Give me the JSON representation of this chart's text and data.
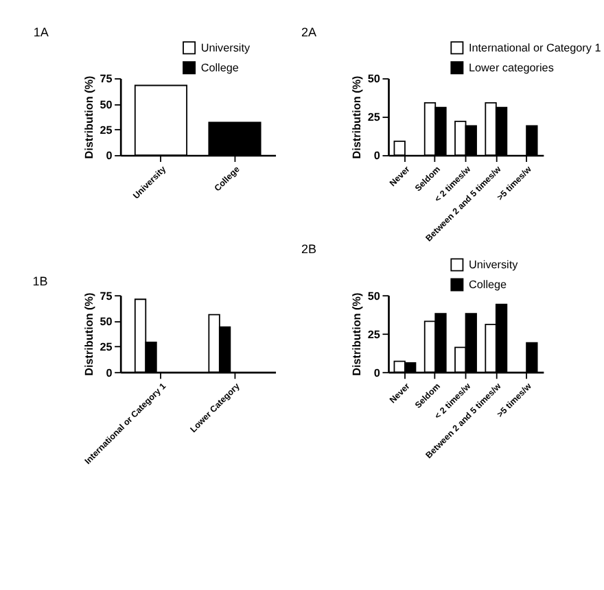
{
  "chart_data": [
    {
      "type": "bar",
      "title": "1A",
      "ylabel": "Distribution (%)",
      "categories": [
        "University",
        "College"
      ],
      "series": [
        {
          "name": "University",
          "color": "#ffffff",
          "values": [
            68,
            null
          ]
        },
        {
          "name": "College",
          "color": "#000000",
          "values": [
            null,
            32
          ]
        }
      ],
      "ylim": [
        0,
        75
      ],
      "yticks": [
        0,
        25,
        50,
        75
      ],
      "grid": false,
      "legend": "top right"
    },
    {
      "type": "bar",
      "title": "2A",
      "ylabel": "Distribution (%)",
      "categories": [
        "Never",
        "Seldom",
        "< 2 times/w",
        "Between 2 and 5 times/w",
        ">5 times/w"
      ],
      "series": [
        {
          "name": "International or Category 1",
          "color": "#ffffff",
          "values": [
            9,
            34,
            22,
            34,
            null
          ]
        },
        {
          "name": "Lower categories",
          "color": "#000000",
          "values": [
            null,
            31,
            19,
            31,
            19
          ]
        }
      ],
      "ylim": [
        0,
        50
      ],
      "yticks": [
        0,
        25,
        50
      ],
      "grid": false,
      "legend": "top right"
    },
    {
      "type": "bar",
      "title": "1B",
      "ylabel": "Distribution (%)",
      "categories": [
        "International or Category 1",
        "Lower Category"
      ],
      "series": [
        {
          "color": "#ffffff",
          "values": [
            71,
            56
          ]
        },
        {
          "color": "#000000",
          "values": [
            29,
            44
          ]
        }
      ],
      "ylim": [
        0,
        75
      ],
      "yticks": [
        0,
        25,
        50,
        75
      ],
      "grid": false,
      "legend": false
    },
    {
      "type": "bar",
      "title": "2B",
      "ylabel": "Distribution (%)",
      "categories": [
        "Never",
        "Seldom",
        "< 2 times/w",
        "Between 2 and 5 times/w",
        ">5 times/w"
      ],
      "series": [
        {
          "name": "University",
          "color": "#ffffff",
          "values": [
            7,
            33,
            16,
            31,
            null
          ]
        },
        {
          "name": "College",
          "color": "#000000",
          "values": [
            6,
            38,
            38,
            44,
            19
          ]
        }
      ],
      "ylim": [
        0,
        50
      ],
      "yticks": [
        0,
        25,
        50
      ],
      "grid": false,
      "legend": "top right"
    }
  ]
}
